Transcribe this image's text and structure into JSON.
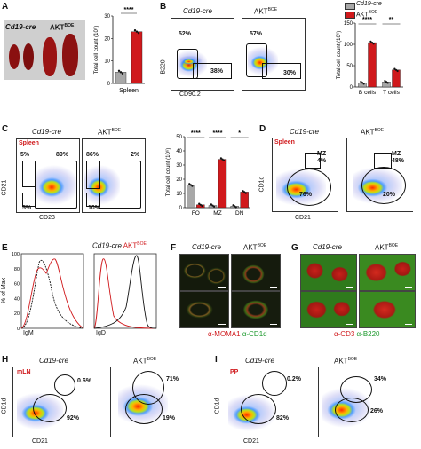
{
  "panels": {
    "A": {
      "label": "A",
      "photo_labels": [
        "Cd19-cre",
        "AKT"
      ],
      "photo_sup": "BOE",
      "chart_data": {
        "type": "bar",
        "categories": [
          "Cd19-cre",
          "AKT BOE"
        ],
        "values": [
          5,
          23
        ],
        "ylim": [
          0,
          30
        ],
        "yticks": [
          "0",
          "10",
          "20",
          "30"
        ],
        "ylabel": "Total cell count (10⁶)",
        "xlabel": "Spleen",
        "significance": "****",
        "colors": [
          "#a8a8a8",
          "#d0191c"
        ]
      }
    },
    "B": {
      "label": "B",
      "plot_titles": [
        "Cd19-cre",
        "AKT"
      ],
      "plot_sup": "BOE",
      "ylabel": "B220",
      "xlabel": "CD90.2",
      "gates": [
        [
          "52%",
          "38%"
        ],
        [
          "57%",
          "30%"
        ]
      ],
      "legend": [
        "Cd19-cre",
        "AKT"
      ],
      "legend_sup": "BOE",
      "chart_data": {
        "type": "bar",
        "categories": [
          "B cells",
          "T cells"
        ],
        "series": [
          {
            "name": "Cd19-cre",
            "values": [
              10,
              12
            ]
          },
          {
            "name": "AKT BOE",
            "values": [
              104,
              40
            ]
          }
        ],
        "ylim": [
          0,
          150
        ],
        "yticks": [
          "0",
          "50",
          "100",
          "150"
        ],
        "ylabel": "Total cell count (10⁶)",
        "significance": [
          "****",
          "**"
        ],
        "colors": [
          "#a8a8a8",
          "#d0191c"
        ]
      }
    },
    "C": {
      "label": "C",
      "tissue": "Spleen",
      "plot_titles": [
        "Cd19-cre",
        "AKT"
      ],
      "plot_sup": "BOE",
      "ylabel": "CD21",
      "xlabel": "CD23",
      "gates": [
        [
          "5%",
          "89%",
          "5%"
        ],
        [
          "86%",
          "2%",
          "10%"
        ]
      ],
      "chart_data": {
        "type": "bar",
        "categories": [
          "FO",
          "MZ",
          "DN"
        ],
        "series": [
          {
            "name": "Cd19-cre",
            "values": [
              16,
              1.5,
              1
            ]
          },
          {
            "name": "AKT BOE",
            "values": [
              2,
              34,
              11
            ]
          }
        ],
        "ylim": [
          0,
          50
        ],
        "yticks": [
          "0",
          "10",
          "20",
          "30",
          "40",
          "50"
        ],
        "ylabel": "Total cell count (10⁶)",
        "significance": [
          "****",
          "****",
          "*"
        ],
        "colors": [
          "#a8a8a8",
          "#d0191c"
        ]
      }
    },
    "D": {
      "label": "D",
      "tissue": "Spleen",
      "plot_titles": [
        "Cd19-cre",
        "AKT"
      ],
      "plot_sup": "BOE",
      "ylabel": "CD1d",
      "xlabel": "CD21",
      "gate_name": "MZ",
      "gates": [
        [
          "4%",
          "76%"
        ],
        [
          "48%",
          "20%"
        ]
      ]
    },
    "E": {
      "label": "E",
      "ylabel": "% of Max",
      "xlabels": [
        "IgM",
        "IgD"
      ],
      "legend": [
        "Cd19-cre",
        "AKT"
      ],
      "legend_sup": "BOE",
      "yticks": [
        "0",
        "20",
        "40",
        "60",
        "80",
        "100"
      ]
    },
    "F": {
      "label": "F",
      "titles": [
        "Cd19-cre",
        "AKT"
      ],
      "title_sup": "BOE",
      "stain_red": "α-MOMA1",
      "stain_green": "α-CD1d"
    },
    "G": {
      "label": "G",
      "titles": [
        "Cd19-cre",
        "AKT"
      ],
      "title_sup": "BOE",
      "stain_red": "α-CD3",
      "stain_green": "α-B220"
    },
    "H": {
      "label": "H",
      "tissue": "mLN",
      "titles": [
        "Cd19-cre",
        "AKT"
      ],
      "title_sup": "BOE",
      "ylabel": "CD1d",
      "xlabel": "CD21",
      "gates": [
        [
          "0.6%",
          "92%"
        ],
        [
          "71%",
          "19%"
        ]
      ]
    },
    "I": {
      "label": "I",
      "tissue": "PP",
      "titles": [
        "Cd19-cre",
        "AKT"
      ],
      "title_sup": "BOE",
      "ylabel": "CD1d",
      "xlabel": "CD21",
      "gates": [
        [
          "0.2%",
          "82%"
        ],
        [
          "34%",
          "26%"
        ]
      ]
    }
  }
}
